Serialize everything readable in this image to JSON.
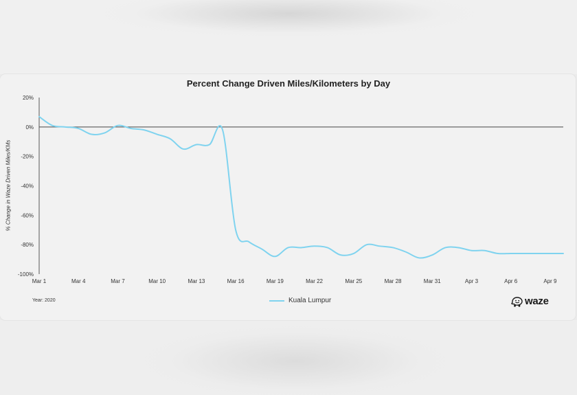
{
  "chart_data": {
    "type": "line",
    "title": "Percent Change Driven Miles/Kilometers by Day",
    "xlabel": "",
    "ylabel": "% Change in Waze Driven Miles/KMs",
    "ylim": [
      -100,
      20
    ],
    "y_ticks": [
      "20%",
      "0%",
      "-20%",
      "-40%",
      "-60%",
      "-80%",
      "-100%"
    ],
    "y_tick_values": [
      20,
      0,
      -20,
      -40,
      -60,
      -80,
      -100
    ],
    "x_tick_labels": [
      "Mar 1",
      "Mar 4",
      "Mar 7",
      "Mar 10",
      "Mar 13",
      "Mar 16",
      "Mar 19",
      "Mar 22",
      "Mar 25",
      "Mar 28",
      "Mar 31",
      "Apr 3",
      "Apr 6",
      "Apr 9"
    ],
    "x_tick_days": [
      0,
      3,
      6,
      9,
      12,
      15,
      18,
      21,
      24,
      27,
      30,
      33,
      36,
      39
    ],
    "x_range_days": [
      0,
      40
    ],
    "series": [
      {
        "name": "Kuala Lumpur",
        "color": "#7fd3ef",
        "days": [
          0,
          1,
          2,
          3,
          4,
          5,
          6,
          7,
          8,
          9,
          10,
          11,
          12,
          13,
          14,
          15,
          16,
          17,
          18,
          19,
          20,
          21,
          22,
          23,
          24,
          25,
          26,
          27,
          28,
          29,
          30,
          31,
          32,
          33,
          34,
          35,
          36,
          37,
          38,
          39,
          40
        ],
        "values": [
          7,
          1,
          0,
          -1,
          -5,
          -4,
          1,
          -1,
          -2,
          -5,
          -8,
          -15,
          -12,
          -12,
          -2,
          -70,
          -78,
          -83,
          -88,
          -82,
          -82,
          -81,
          -82,
          -87,
          -86,
          -80,
          -81,
          -82,
          -85,
          -89,
          -87,
          -82,
          -82,
          -84,
          -84,
          -86,
          -86,
          -86,
          -86,
          -86,
          -86
        ]
      }
    ],
    "year_note": "Year: 2020",
    "grid": false
  },
  "brand": {
    "logo_text": "waze"
  }
}
